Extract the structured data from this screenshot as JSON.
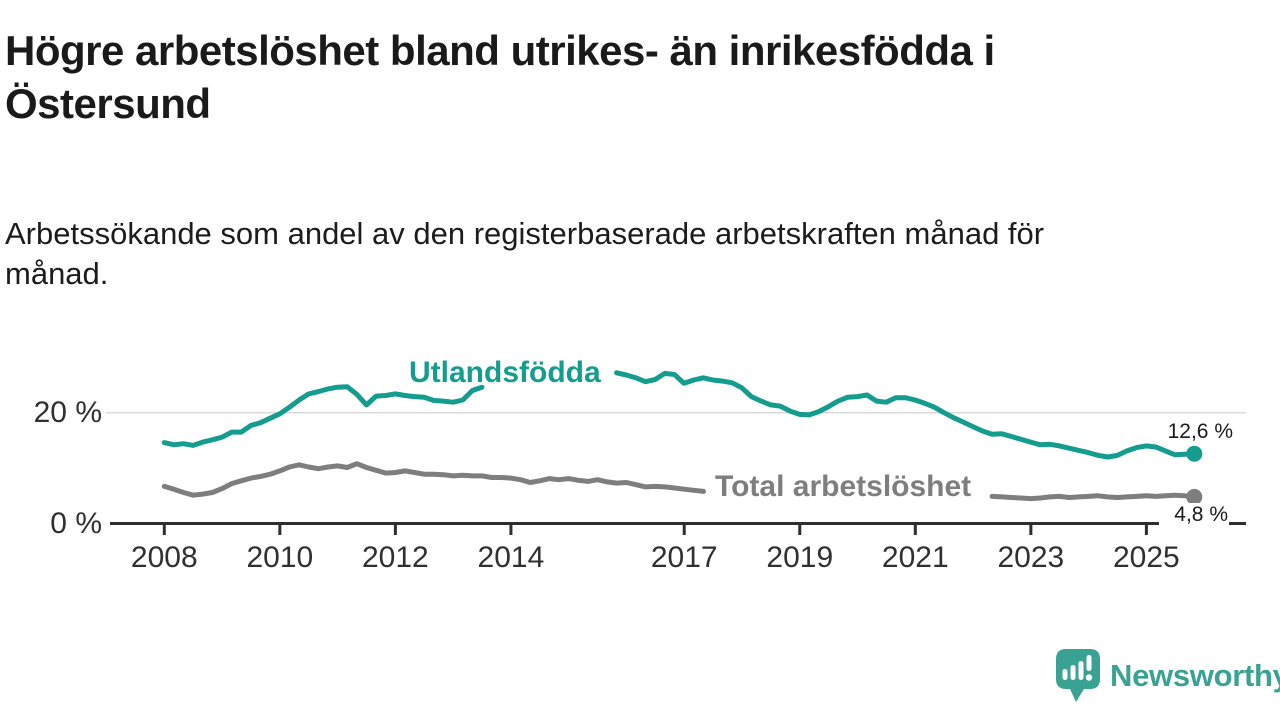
{
  "header": {
    "title_lines": [
      "Högre arbetslöshet bland utrikes- än inrikesfödda i",
      "Östersund"
    ],
    "subtitle_lines": [
      "Arbetssökande som andel av den registerbaserade arbetskraften månad för",
      "månad."
    ]
  },
  "chart_data": {
    "type": "line",
    "unit": "%",
    "x_axis": {
      "ticks": [
        {
          "year": 2008,
          "label": "2008"
        },
        {
          "year": 2010,
          "label": "2010"
        },
        {
          "year": 2012,
          "label": "2012"
        },
        {
          "year": 2014,
          "label": "2014"
        },
        {
          "year": 2017,
          "label": "2017"
        },
        {
          "year": 2019,
          "label": "2019"
        },
        {
          "year": 2021,
          "label": "2021"
        },
        {
          "year": 2023,
          "label": "2023"
        },
        {
          "year": 2025,
          "label": "2025"
        }
      ],
      "range": [
        2007.9,
        2026.0
      ]
    },
    "y_axis": {
      "ticks": [
        {
          "value": 0,
          "label": "0 %"
        },
        {
          "value": 20,
          "label": "20 %"
        }
      ],
      "range": [
        0,
        29
      ],
      "grid": "on"
    },
    "series": [
      {
        "name": "Utlandsfödda",
        "color": "#149c8e",
        "end_label": "12,6 %",
        "end_value": 12.6,
        "segments": [
          {
            "start": 2008.0,
            "step": 0.166667,
            "values": [
              14.6,
              14.2,
              14.4,
              14.1,
              14.7,
              15.1,
              15.6,
              16.5,
              16.5,
              17.7,
              18.2,
              19.0,
              19.8,
              21.0,
              22.3,
              23.4,
              23.8,
              24.3,
              24.6,
              24.7,
              23.3,
              21.4,
              23.0,
              23.1,
              23.4,
              23.1,
              22.9,
              22.8,
              22.2,
              22.1,
              21.9,
              22.3,
              24.0,
              24.6
            ]
          },
          {
            "start": 2015.83,
            "step": 0.166667,
            "values": [
              27.2,
              26.8,
              26.3,
              25.6,
              26.0,
              27.1,
              26.9,
              25.3,
              25.9,
              26.3,
              25.9,
              25.7,
              25.4,
              24.5,
              22.9,
              22.1,
              21.4,
              21.2,
              20.3,
              19.7,
              19.6,
              20.2,
              21.1,
              22.1,
              22.8,
              22.9,
              23.2,
              22.1,
              21.9,
              22.7,
              22.7,
              22.3,
              21.7,
              21.0,
              20.0,
              19.1,
              18.3,
              17.5,
              16.7,
              16.1,
              16.2,
              15.7,
              15.2,
              14.7,
              14.2,
              14.3,
              14.0,
              13.6,
              13.2,
              12.8,
              12.3,
              12.0,
              12.3,
              13.1,
              13.7,
              14.0,
              13.8,
              13.1,
              12.4,
              12.5,
              12.6
            ]
          }
        ]
      },
      {
        "name": "Total arbetslöshet",
        "color": "#7e7e7e",
        "end_label": "4,8 %",
        "end_value": 4.8,
        "segments": [
          {
            "start": 2008.0,
            "step": 0.166667,
            "values": [
              6.7,
              6.2,
              5.6,
              5.1,
              5.3,
              5.6,
              6.3,
              7.2,
              7.7,
              8.2,
              8.5,
              8.9,
              9.5,
              10.2,
              10.6,
              10.2,
              9.9,
              10.2,
              10.4,
              10.1,
              10.8,
              10.1,
              9.6,
              9.1,
              9.2,
              9.5,
              9.2,
              8.9,
              8.9,
              8.8,
              8.6,
              8.7,
              8.6,
              8.6,
              8.3,
              8.3,
              8.2,
              7.9,
              7.4,
              7.7,
              8.1,
              7.9,
              8.1,
              7.8,
              7.6,
              7.9,
              7.5,
              7.3,
              7.4,
              7.0,
              6.6,
              6.7,
              6.6,
              6.4,
              6.2,
              6.0,
              5.8
            ]
          },
          {
            "start": 2022.33,
            "step": 0.166667,
            "values": [
              4.9,
              4.8,
              4.7,
              4.6,
              4.5,
              4.6,
              4.8,
              4.9,
              4.7,
              4.8,
              4.9,
              5.0,
              4.8,
              4.7,
              4.8,
              4.9,
              5.0,
              4.9,
              5.0,
              5.1,
              5.0,
              4.8
            ]
          }
        ]
      }
    ]
  },
  "colors": {
    "accent_teal": "#149c8e",
    "series_gray": "#7e7e7e",
    "axis_line": "#2e2e2e",
    "grid_line": "#d8d8d8",
    "axis_text": "#303030",
    "text": "#1a1a1a",
    "logo_teal": "#3aa293"
  },
  "logo": {
    "text": "Newsworthy",
    "icon": "bar-chart-speech-bubble-icon"
  }
}
